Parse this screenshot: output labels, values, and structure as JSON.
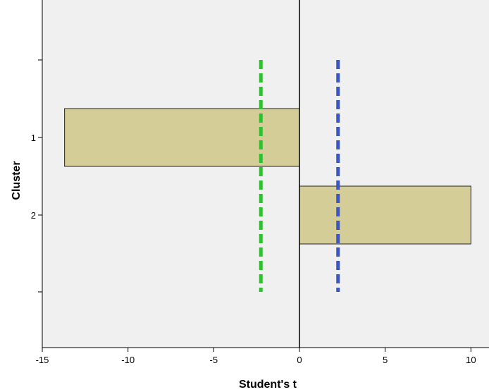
{
  "chart_data": {
    "type": "bar",
    "orientation": "horizontal",
    "xlabel": "Student's t",
    "ylabel": "Cluster",
    "xlim": [
      -15,
      10.8
    ],
    "x_ticks": [
      -15,
      -10,
      -5,
      0,
      5,
      10
    ],
    "y_ticks": [
      "",
      "1",
      "2",
      ""
    ],
    "categories": [
      "1",
      "2"
    ],
    "values": [
      -13.7,
      10.0
    ],
    "reference_lines": [
      {
        "value": -2.25,
        "color": "#2ec02e",
        "style": "dashed"
      },
      {
        "value": 2.25,
        "color": "#3b55c4",
        "style": "dashed"
      }
    ],
    "zero_line": 0,
    "colors": {
      "bar_fill": "#d4cd97",
      "bar_stroke": "#222222",
      "plot_background": "#f0f0f0"
    },
    "grid": false,
    "legend": "none"
  }
}
